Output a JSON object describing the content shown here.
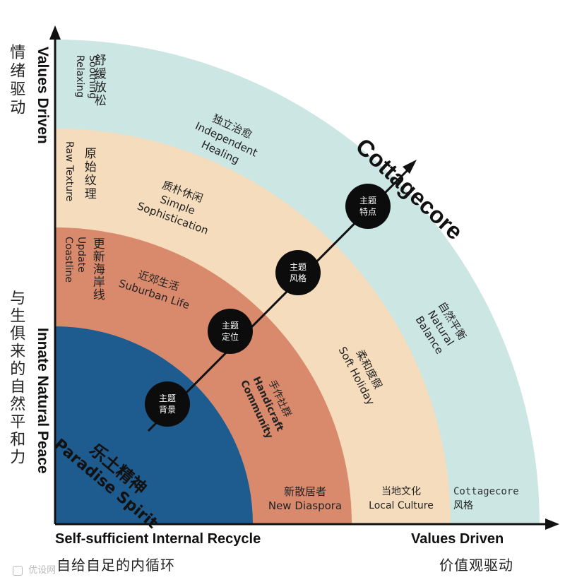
{
  "diagram": {
    "arrow_label": "Cottagecore",
    "rings": [
      {
        "zh": "风格",
        "en": "Cottagecore",
        "color": "#cbe6e3"
      },
      {
        "zh": "当地文化",
        "en": "Local Culture",
        "color": "#f5dcbc"
      },
      {
        "zh": "新散居者",
        "en": "New Diaspora",
        "color": "#d98a6c"
      },
      {
        "zh": "乐土精神",
        "en": "Paradise Spirit",
        "color": "#1e5b8e"
      }
    ],
    "ring_labels": {
      "teal_top_zh": "舒缓放松",
      "teal_top_en1": "Soothing",
      "teal_top_en2": "Relaxing",
      "teal_mid_zh": "独立治愈",
      "teal_mid_en1": "Independent",
      "teal_mid_en2": "Healing",
      "teal_right_zh": "自然平衡",
      "teal_right_en1": "Natural",
      "teal_right_en2": "Balance",
      "beige_top_zh": "原始纹理",
      "beige_top_en": "Raw Texture",
      "beige_mid_zh": "质朴休闲",
      "beige_mid_en1": "Simple",
      "beige_mid_en2": "Sophistication",
      "beige_right_zh": "柔和度假",
      "beige_right_en": "Soft Holiday",
      "orange_top_zh": "更新海岸线",
      "orange_top_en1": "Update",
      "orange_top_en2": "Coastline",
      "orange_mid_zh": "近郊生活",
      "orange_mid_en": "Suburban Life",
      "orange_right_zh": "手作社群",
      "orange_right_en1": "Handicraft",
      "orange_right_en2": "Community",
      "blue_zh": "乐土精神",
      "blue_en": "Paradise Spirit"
    },
    "nodes": [
      {
        "l1": "主题",
        "l2": "背景"
      },
      {
        "l1": "主题",
        "l2": "定位"
      },
      {
        "l1": "主题",
        "l2": "风格"
      },
      {
        "l1": "主题",
        "l2": "特点"
      }
    ],
    "bottom": {
      "cottage_en": "Cottagecore",
      "cottage_zh": "风格",
      "local_zh": "当地文化",
      "local_en": "Local Culture",
      "diaspora_zh": "新散居者",
      "diaspora_en": "New Diaspora"
    },
    "y_axis": {
      "top_en": "Values Driven",
      "top_zh": "情绪驱动",
      "bottom_en": "Innate Natural Peace",
      "bottom_zh": "与生俱来的自然平和力"
    },
    "x_axis": {
      "left_en": "Self-sufficient Internal Recycle",
      "left_zh": "自给自足的内循环",
      "right_en": "Values Driven",
      "right_zh": "价值观驱动"
    },
    "watermark": "优设网"
  }
}
